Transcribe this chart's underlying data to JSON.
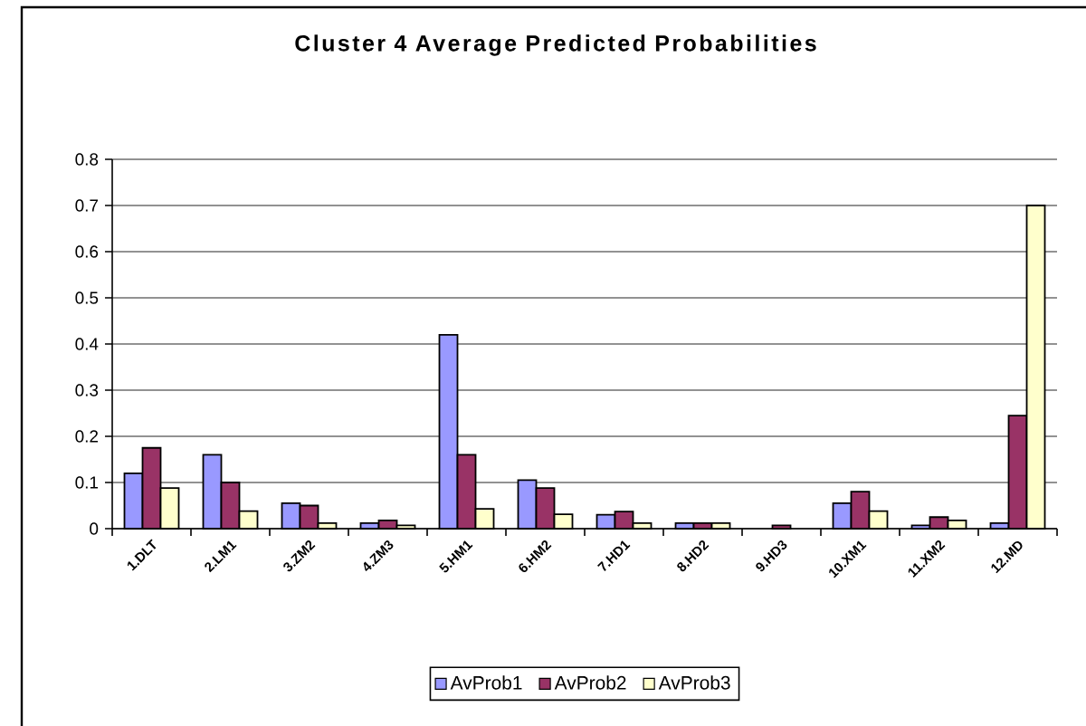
{
  "chart_data": {
    "type": "bar",
    "title": "Cluster 4 Average Predicted Probabilities",
    "categories": [
      "1.DLT",
      "2.LM1",
      "3.ZM2",
      "4.ZM3",
      "5.HM1",
      "6.HM2",
      "7.HD1",
      "8.HD2",
      "9.HD3",
      "10.XM1",
      "11.XM2",
      "12.MD"
    ],
    "series": [
      {
        "name": "AvProb1",
        "color": "#9999ff",
        "values": [
          0.12,
          0.16,
          0.055,
          0.012,
          0.42,
          0.105,
          0.03,
          0.012,
          null,
          0.055,
          0.007,
          0.012
        ]
      },
      {
        "name": "AvProb2",
        "color": "#993366",
        "values": [
          0.175,
          0.1,
          0.05,
          0.018,
          0.16,
          0.088,
          0.037,
          0.012,
          0.007,
          0.08,
          0.025,
          0.245
        ]
      },
      {
        "name": "AvProb3",
        "color": "#ffffcc",
        "values": [
          0.088,
          0.038,
          0.012,
          0.007,
          0.043,
          0.031,
          0.012,
          0.012,
          null,
          0.038,
          0.018,
          0.7
        ]
      }
    ],
    "ylim": [
      0,
      0.8
    ],
    "yticks": [
      0,
      0.1,
      0.2,
      0.3,
      0.4,
      0.5,
      0.6,
      0.7,
      0.8
    ],
    "grid": "y",
    "legend": "bottom"
  }
}
